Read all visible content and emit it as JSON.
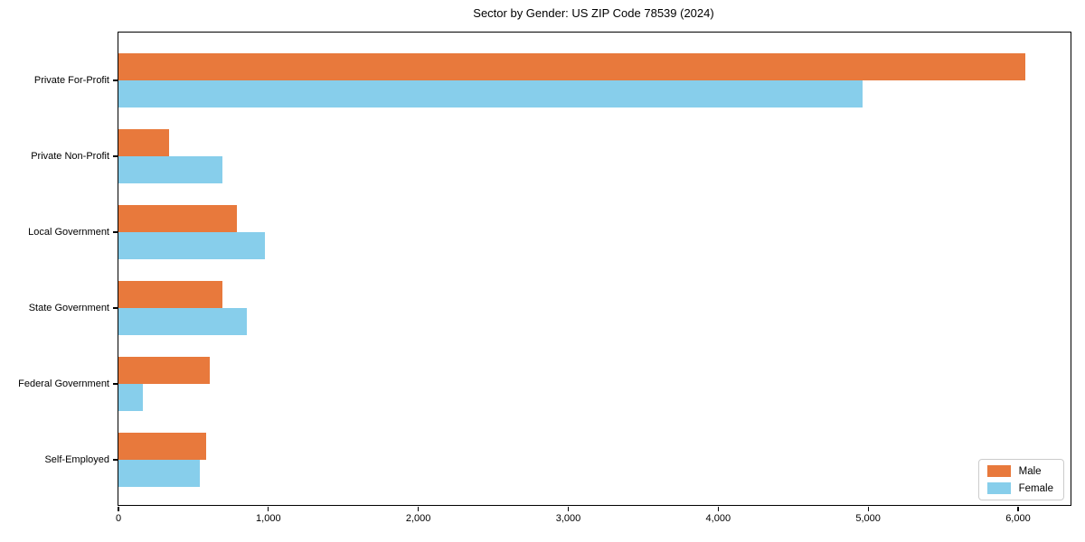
{
  "chart_data": {
    "type": "bar",
    "orientation": "horizontal",
    "title": "Sector by Gender: US ZIP Code 78539 (2024)",
    "categories": [
      "Private For-Profit",
      "Private Non-Profit",
      "Local Government",
      "State Government",
      "Federal Government",
      "Self-Employed"
    ],
    "series": [
      {
        "name": "Male",
        "color": "#e8793c",
        "values": [
          6050,
          336,
          791,
          695,
          606,
          584
        ]
      },
      {
        "name": "Female",
        "color": "#87ceeb",
        "values": [
          4960,
          691,
          975,
          859,
          163,
          545
        ]
      }
    ],
    "xlabel": "",
    "ylabel": "",
    "xlim": [
      0,
      6350
    ],
    "x_ticks": [
      0,
      1000,
      2000,
      3000,
      4000,
      5000,
      6000
    ],
    "x_tick_labels": [
      "0",
      "1,000",
      "2,000",
      "3,000",
      "4,000",
      "5,000",
      "6,000"
    ],
    "grid": false,
    "legend_position": "lower right",
    "plot_border_color": "#000000",
    "background_color": "#ffffff"
  }
}
